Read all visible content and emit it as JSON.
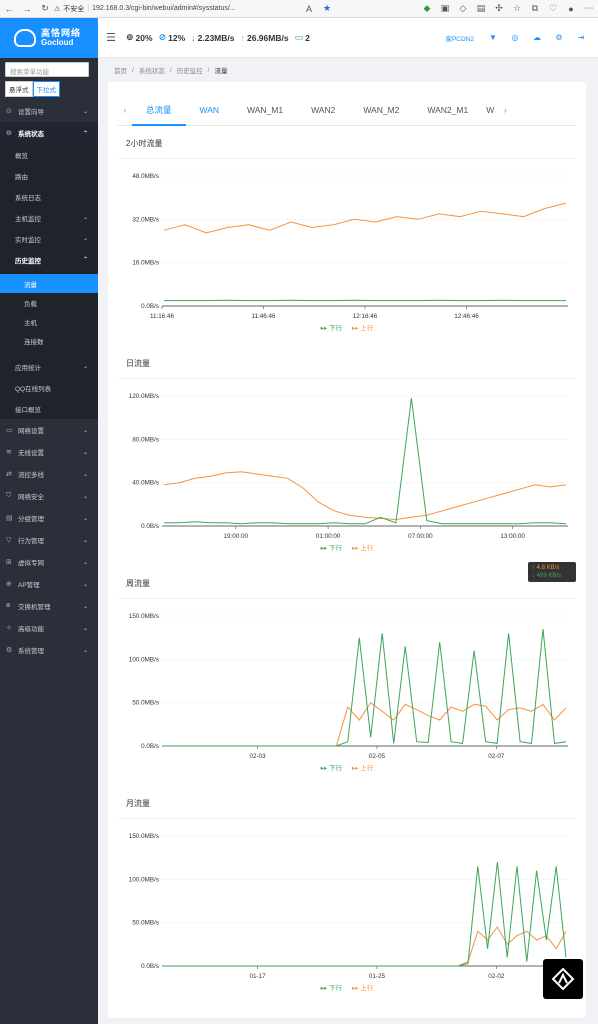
{
  "browser": {
    "insecure": "不安全",
    "url": "192.168.0.3/cgi-bin/webui/admin#/sysstatus/..."
  },
  "sidebar": {
    "brand_cn": "高恪网络",
    "brand_en": "Gocloud",
    "search_placeholder": "搜索菜单功能",
    "style_float": "悬浮式",
    "style_dropdown": "下拉式",
    "items": [
      "设置向导",
      "系统状态",
      "网络设置",
      "无线设置",
      "流控多线",
      "网络安全",
      "分组管理",
      "行为管理",
      "虚拟专网",
      "AP管理",
      "交换机管理",
      "高级功能",
      "系统管理"
    ],
    "status_sub": [
      "概览",
      "路由",
      "系统日志",
      "主机监控",
      "实时监控",
      "历史监控",
      "应用统计",
      "QQ在线列表",
      "接口概览"
    ],
    "history_sub": [
      "流量",
      "负载",
      "主机",
      "连接数"
    ]
  },
  "topbar": {
    "cpu": "20%",
    "mem": "12%",
    "down": "2.23MB/s",
    "up": "26.96MB/s",
    "devices": "2",
    "user": "家PCDN2"
  },
  "breadcrumb": [
    "首页",
    "系统状态",
    "历史监控",
    "流量"
  ],
  "tabs": [
    "总流量",
    "WAN",
    "WAN_M1",
    "WAN2",
    "WAN_M2",
    "WAN2_M1",
    "W"
  ],
  "legend": {
    "down": "下行",
    "up": "上行"
  },
  "tooltip": {
    "up": "↑ 4.8 KB/s",
    "down": "↓ 499 KB/s"
  },
  "colors": {
    "down": "#3aa757",
    "up": "#f5923e",
    "accent": "#1890ff"
  },
  "chart_data": [
    {
      "type": "line",
      "title": "2小时流量",
      "y_ticks": [
        "48.0MB/s",
        "32.0MB/s",
        "16.0MB/s",
        "0.0B/s"
      ],
      "ylim": [
        0,
        48
      ],
      "x_ticks": [
        "11:16:46",
        "11:46:46",
        "12:16:46",
        "12:46:46"
      ],
      "series": [
        {
          "name": "下行",
          "values": [
            2,
            2,
            2,
            2.1,
            2,
            2,
            2.1,
            2,
            2,
            2.1,
            2,
            2,
            2,
            2.1,
            2,
            2,
            2.1,
            2,
            2,
            2
          ]
        },
        {
          "name": "上行",
          "values": [
            28,
            30,
            27,
            29,
            30,
            28,
            31,
            29,
            30,
            32,
            31,
            33,
            32,
            34,
            33,
            35,
            34,
            33,
            36,
            38
          ]
        }
      ]
    },
    {
      "type": "line",
      "title": "日流量",
      "y_ticks": [
        "120.0MB/s",
        "80.0MB/s",
        "40.0MB/s",
        "0.0B/s"
      ],
      "ylim": [
        0,
        120
      ],
      "x_ticks": [
        "19:00:00",
        "01:00:00",
        "07:00:00",
        "13:00:00"
      ],
      "series": [
        {
          "name": "下行",
          "values": [
            3,
            3,
            4,
            3,
            3,
            2,
            3,
            3,
            2,
            2,
            2,
            3,
            2,
            2,
            8,
            3,
            118,
            5,
            2,
            2,
            2,
            2,
            2,
            2,
            3,
            3,
            2
          ]
        },
        {
          "name": "上行",
          "values": [
            38,
            40,
            44,
            46,
            49,
            50,
            48,
            46,
            44,
            35,
            22,
            14,
            10,
            8,
            7,
            6,
            8,
            10,
            14,
            18,
            22,
            26,
            30,
            34,
            38,
            36,
            38
          ]
        }
      ]
    },
    {
      "type": "line",
      "title": "周流量",
      "y_ticks": [
        "150.0MB/s",
        "100.0MB/s",
        "50.0MB/s",
        "0.0B/s"
      ],
      "ylim": [
        0,
        150
      ],
      "x_ticks": [
        "02-03",
        "02-05",
        "02-07"
      ],
      "series": [
        {
          "name": "下行",
          "values": [
            0,
            0,
            0,
            0,
            0,
            0,
            0,
            0,
            0,
            0,
            0,
            0,
            0,
            0,
            0,
            0,
            5,
            125,
            10,
            130,
            3,
            115,
            5,
            4,
            120,
            5,
            3,
            110,
            5,
            3,
            130,
            5,
            3,
            135,
            3,
            5
          ]
        },
        {
          "name": "上行",
          "values": [
            0,
            0,
            0,
            0,
            0,
            0,
            0,
            0,
            0,
            0,
            0,
            0,
            0,
            0,
            0,
            0,
            45,
            30,
            50,
            40,
            30,
            48,
            42,
            35,
            30,
            45,
            40,
            48,
            46,
            30,
            42,
            44,
            40,
            48,
            30,
            44
          ]
        }
      ]
    },
    {
      "type": "line",
      "title": "月流量",
      "y_ticks": [
        "150.0MB/s",
        "100.0MB/s",
        "50.0MB/s",
        "0.0B/s"
      ],
      "ylim": [
        0,
        150
      ],
      "x_ticks": [
        "01-17",
        "01-25",
        "02-02"
      ],
      "series": [
        {
          "name": "下行",
          "values": [
            0,
            0,
            0,
            0,
            0,
            0,
            0,
            0,
            0,
            0,
            0,
            0,
            0,
            0,
            0,
            0,
            0,
            0,
            0,
            0,
            0,
            0,
            0,
            0,
            0,
            0,
            0,
            0,
            0,
            0,
            0,
            3,
            115,
            20,
            120,
            10,
            115,
            5,
            110,
            30,
            115,
            10
          ]
        },
        {
          "name": "上行",
          "values": [
            0,
            0,
            0,
            0,
            0,
            0,
            0,
            0,
            0,
            0,
            0,
            0,
            0,
            0,
            0,
            0,
            0,
            0,
            0,
            0,
            0,
            0,
            0,
            0,
            0,
            0,
            0,
            0,
            0,
            0,
            0,
            5,
            40,
            30,
            45,
            25,
            35,
            40,
            30,
            35,
            20,
            40
          ]
        }
      ]
    }
  ]
}
